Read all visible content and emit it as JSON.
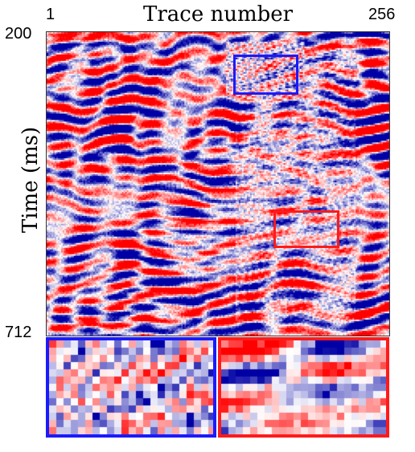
{
  "axes": {
    "x_title": "Trace number",
    "y_title": "Time (ms)",
    "x_tick_start": "1",
    "x_tick_end": "256",
    "y_tick_start": "200",
    "y_tick_end": "712"
  },
  "seismic": {
    "colormap": "seismic (blue-white-red)",
    "positive_color": "#ff0000",
    "negative_color": "#0000ff",
    "zero_color": "#ffffff",
    "traces": [
      1,
      256
    ],
    "time_ms": [
      200,
      712
    ]
  },
  "zoom_boxes": [
    {
      "name": "blue",
      "color": "#1a1aff"
    },
    {
      "name": "red",
      "color": "#ff1a1a"
    }
  ]
}
